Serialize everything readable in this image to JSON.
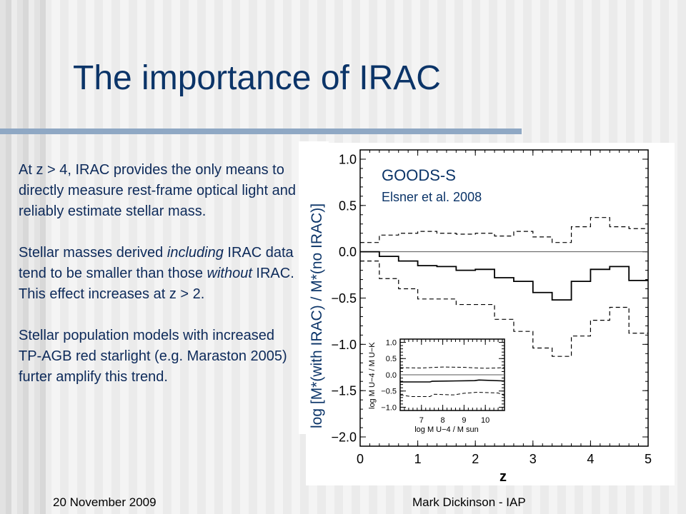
{
  "slide": {
    "title": "The importance of IRAC",
    "paragraphs": [
      {
        "text": "At z > 4, IRAC provides the only means to directly measure rest-frame optical light and reliably estimate stellar mass."
      },
      {
        "pre": "Stellar masses derived ",
        "em": "including",
        "post": " IRAC data tend to be smaller than those ",
        "em2": "without",
        "post2": " IRAC.",
        "line2": "This effect increases at z > 2."
      },
      {
        "text": "Stellar population models with increased TP-AGB red starlight (e.g. Maraston 2005) furter amplify this trend."
      }
    ],
    "footer_left": "20 November 2009",
    "footer_right": "Mark Dickinson - IAP"
  },
  "colors": {
    "title": "#0b3468",
    "text": "#0d2a5a",
    "rule": "#8fa8c4"
  },
  "chart_data": {
    "type": "line",
    "title": "GOODS-S",
    "subtitle": "Elsner et al. 2008",
    "xlabel": "z",
    "ylabel": "log [M*(with IRAC) / M*(no IRAC)]",
    "xlim": [
      0,
      5
    ],
    "ylim": [
      -2.1,
      1.1
    ],
    "xticks": [
      "0",
      "1",
      "2",
      "3",
      "4",
      "5"
    ],
    "yticks": [
      "1.0",
      "0.5",
      "0.0",
      "−0.5",
      "−1.0",
      "−1.5",
      "−2.0"
    ],
    "bin_edges": [
      0,
      0.333,
      0.667,
      1,
      1.333,
      1.667,
      2,
      2.333,
      2.667,
      3,
      3.333,
      3.667,
      4,
      4.333,
      4.667,
      5
    ],
    "series": [
      {
        "name": "median",
        "style": "solid",
        "values": [
          0.0,
          -0.05,
          -0.1,
          -0.15,
          -0.16,
          -0.2,
          -0.19,
          -0.28,
          -0.32,
          -0.44,
          -0.52,
          -0.32,
          -0.19,
          -0.16,
          -0.31
        ]
      },
      {
        "name": "upper",
        "style": "dashed",
        "values": [
          0.1,
          0.18,
          0.2,
          0.22,
          0.2,
          0.19,
          0.2,
          0.17,
          0.22,
          0.16,
          0.1,
          0.27,
          0.37,
          0.27,
          0.25
        ]
      },
      {
        "name": "lower",
        "style": "dashed",
        "values": [
          -0.1,
          -0.29,
          -0.4,
          -0.51,
          -0.51,
          -0.57,
          -0.57,
          -0.73,
          -0.86,
          -1.04,
          -1.13,
          -0.91,
          -0.74,
          -0.6,
          -0.88
        ]
      }
    ],
    "inset": {
      "xlabel": "log M U−4 / M sun",
      "ylabel": "log M U−4 / M U−K",
      "xlim": [
        6,
        10.9
      ],
      "ylim": [
        -1.1,
        1.1
      ],
      "xticks": [
        "7",
        "8",
        "9",
        "10"
      ],
      "yticks": [
        "1.0",
        "0.5",
        "0.0",
        "−0.5",
        "−1.0"
      ],
      "series": [
        {
          "name": "median",
          "style": "solid",
          "x": [
            6,
            7.4,
            7.5,
            9.5,
            9.7,
            10.9
          ],
          "values": [
            -0.22,
            -0.22,
            -0.2,
            -0.18,
            -0.16,
            -0.19
          ]
        },
        {
          "name": "upper",
          "style": "dashed",
          "x": [
            6,
            7,
            8,
            9,
            10,
            10.9
          ],
          "values": [
            0.22,
            0.21,
            0.24,
            0.23,
            0.2,
            0.22
          ]
        },
        {
          "name": "lower",
          "style": "dashed",
          "x": [
            6,
            6.5,
            7.4,
            7.6,
            8.5,
            9,
            9.6,
            10.6,
            10.9
          ],
          "values": [
            -0.62,
            -0.67,
            -0.67,
            -0.6,
            -0.62,
            -0.57,
            -0.54,
            -0.56,
            -0.64
          ]
        }
      ]
    }
  }
}
